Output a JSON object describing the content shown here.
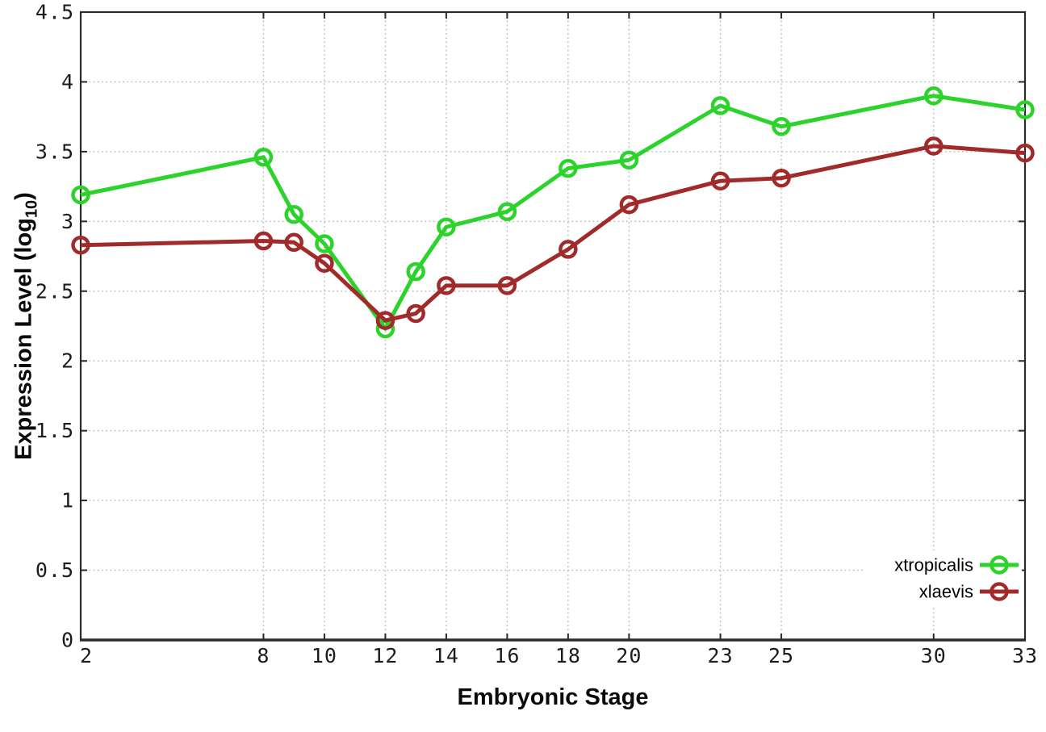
{
  "chart_data": {
    "type": "line",
    "title": "",
    "xlabel": "Embryonic Stage",
    "ylabel": {
      "main": "Expression Level (log",
      "sub": "10",
      "close": ")"
    },
    "xlim": [
      2,
      33
    ],
    "ylim": [
      0,
      4.5
    ],
    "x_ticks": [
      2,
      8,
      10,
      12,
      14,
      16,
      18,
      20,
      23,
      25,
      30,
      33
    ],
    "y_ticks": [
      0,
      0.5,
      1,
      1.5,
      2,
      2.5,
      3,
      3.5,
      4,
      4.5
    ],
    "grid": "dotted",
    "legend_position": "bottom-right",
    "marker": "open-circle",
    "series": [
      {
        "name": "xtropicalis",
        "color": "#2bd32b",
        "points": [
          [
            2,
            3.19
          ],
          [
            8,
            3.46
          ],
          [
            9,
            3.05
          ],
          [
            10,
            2.84
          ],
          [
            12,
            2.23
          ],
          [
            13,
            2.64
          ],
          [
            14,
            2.96
          ],
          [
            16,
            3.07
          ],
          [
            18,
            3.38
          ],
          [
            20,
            3.44
          ],
          [
            23,
            3.83
          ],
          [
            25,
            3.68
          ],
          [
            30,
            3.9
          ],
          [
            33,
            3.8
          ]
        ]
      },
      {
        "name": "xlaevis",
        "color": "#a12a2a",
        "points": [
          [
            2,
            2.83
          ],
          [
            8,
            2.86
          ],
          [
            9,
            2.85
          ],
          [
            10,
            2.7
          ],
          [
            12,
            2.29
          ],
          [
            13,
            2.34
          ],
          [
            14,
            2.54
          ],
          [
            16,
            2.54
          ],
          [
            18,
            2.8
          ],
          [
            20,
            3.12
          ],
          [
            23,
            3.29
          ],
          [
            25,
            3.31
          ],
          [
            30,
            3.54
          ],
          [
            33,
            3.49
          ]
        ]
      }
    ],
    "colors": {
      "grid": "#b9b9b9",
      "border": "#2b2b2b",
      "tick_text": "#1c1c1c",
      "background": "#ffffff"
    }
  }
}
